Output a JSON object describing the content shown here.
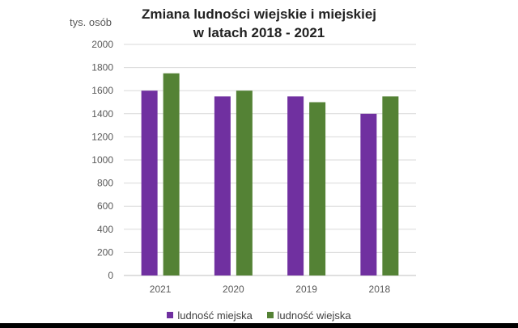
{
  "chart_data": {
    "type": "bar",
    "title": [
      "Zmiana ludności wiejskie i miejskiej",
      "w latach 2018 - 2021"
    ],
    "ylabel": "tys. osób",
    "xlabel": "",
    "categories": [
      "2021",
      "2020",
      "2019",
      "2018"
    ],
    "series": [
      {
        "name": "ludność miejska",
        "color": "#7030a0",
        "values": [
          1600,
          1550,
          1550,
          1400
        ]
      },
      {
        "name": "ludność wiejska",
        "color": "#548235",
        "values": [
          1750,
          1600,
          1500,
          1550
        ]
      }
    ],
    "ylim": [
      0,
      2000
    ],
    "yticks": [
      "0",
      "200",
      "400",
      "600",
      "800",
      "1000",
      "1200",
      "1400",
      "1600",
      "1800",
      "2000"
    ],
    "grid": true,
    "legend_position": "bottom"
  }
}
